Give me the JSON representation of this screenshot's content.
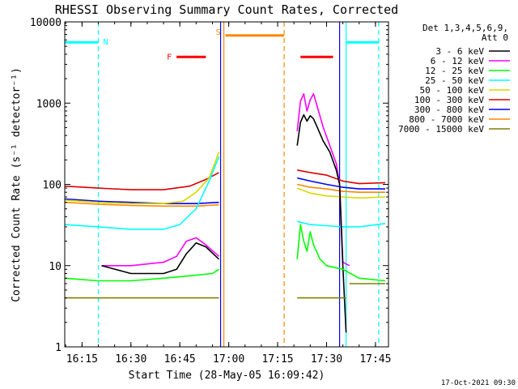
{
  "chart_data": {
    "type": "line",
    "title": "RHESSI Observing Summary Count Rates, Corrected",
    "xlabel": "Start Time (28-May-05 16:09:42)",
    "ylabel": "Corrected Count Rate (s⁻¹ detector⁻¹)",
    "yscale": "log",
    "ylim": [
      1,
      10000
    ],
    "xlim": [
      "16:09:42",
      "17:49:00"
    ],
    "x_ticks": [
      "16:15",
      "16:30",
      "16:45",
      "17:00",
      "17:15",
      "17:30",
      "17:45"
    ],
    "y_ticks": [
      "1",
      "10",
      "100",
      "1000",
      "10000"
    ],
    "timestamp": "17-Oct-2021 09:30",
    "legend": {
      "header": [
        "Det 1,3,4,5,6,9,",
        "Att 0"
      ],
      "position": "top-right",
      "entries": [
        {
          "label": "3 - 6 keV",
          "color": "#000000"
        },
        {
          "label": "6 - 12 keV",
          "color": "#ff00ff"
        },
        {
          "label": "12 - 25 keV",
          "color": "#00ff00"
        },
        {
          "label": "25 - 50 keV",
          "color": "#00ffff"
        },
        {
          "label": "50 - 100 keV",
          "color": "#d8d800"
        },
        {
          "label": "100 - 300 keV",
          "color": "#dd0000"
        },
        {
          "label": "300 - 800 keV",
          "color": "#0000ff"
        },
        {
          "label": "800 - 7000 keV",
          "color": "#ff8800"
        },
        {
          "label": "7000 - 15000 keV",
          "color": "#808000"
        }
      ]
    },
    "flags": [
      {
        "label": "N",
        "color": "#00ffff",
        "x_start": "16:09:42",
        "x_end": "16:20:00",
        "level": 5600
      },
      {
        "label": "N",
        "color": "#00ffff",
        "x_start": "17:36:00",
        "x_end": "17:46:00",
        "level": 5600
      },
      {
        "label": "F",
        "color": "#ff0000",
        "x_start": "16:44:00",
        "x_end": "16:53:00",
        "level": 3700
      },
      {
        "label": "F",
        "color": "#ff0000",
        "x_start": "17:22:00",
        "x_end": "17:32:00",
        "level": 3700
      },
      {
        "label": "S",
        "color": "#ff8800",
        "x_start": "16:59:00",
        "x_end": "17:17:00",
        "level": 6800
      }
    ],
    "markers": [
      {
        "time": "16:20:00",
        "color": "#00ffff",
        "style": "dashed"
      },
      {
        "time": "16:57:30",
        "color": "#0000ff",
        "style": "solid"
      },
      {
        "time": "16:58:30",
        "color": "#ff8800",
        "style": "solid"
      },
      {
        "time": "17:17:00",
        "color": "#ff8800",
        "style": "dashed"
      },
      {
        "time": "17:34:00",
        "color": "#0000ff",
        "style": "solid"
      },
      {
        "time": "17:36:00",
        "color": "#00ffff",
        "style": "solid"
      },
      {
        "time": "17:46:00",
        "color": "#00ffff",
        "style": "dashed"
      }
    ],
    "series": [
      {
        "color": "#dd0000",
        "segments": [
          [
            [
              "16:09:42",
              95
            ],
            [
              "16:20",
              90
            ],
            [
              "16:30",
              86
            ],
            [
              "16:40",
              86
            ],
            [
              "16:48",
              95
            ],
            [
              "16:53",
              115
            ],
            [
              "16:57",
              140
            ]
          ],
          [
            [
              "17:21",
              150
            ],
            [
              "17:25",
              140
            ],
            [
              "17:30",
              130
            ],
            [
              "17:35",
              110
            ],
            [
              "17:40",
              102
            ],
            [
              "17:48",
              105
            ]
          ]
        ]
      },
      {
        "color": "#0000ff",
        "segments": [
          [
            [
              "16:09:42",
              66
            ],
            [
              "16:20",
              62
            ],
            [
              "16:30",
              60
            ],
            [
              "16:40",
              58
            ],
            [
              "16:50",
              58
            ],
            [
              "16:57",
              60
            ]
          ],
          [
            [
              "17:21",
              120
            ],
            [
              "17:25",
              110
            ],
            [
              "17:30",
              100
            ],
            [
              "17:35",
              92
            ],
            [
              "17:40",
              88
            ],
            [
              "17:48",
              88
            ]
          ]
        ]
      },
      {
        "color": "#ff8800",
        "segments": [
          [
            [
              "16:09:42",
              60
            ],
            [
              "16:20",
              57
            ],
            [
              "16:30",
              55
            ],
            [
              "16:40",
              54
            ],
            [
              "16:50",
              54
            ],
            [
              "16:57",
              56
            ]
          ],
          [
            [
              "17:21",
              100
            ],
            [
              "17:25",
              92
            ],
            [
              "17:30",
              88
            ],
            [
              "17:35",
              82
            ],
            [
              "17:40",
              80
            ],
            [
              "17:48",
              80
            ]
          ]
        ]
      },
      {
        "color": "#d8d800",
        "segments": [
          [
            [
              "16:09:42",
              64
            ],
            [
              "16:20",
              60
            ],
            [
              "16:30",
              58
            ],
            [
              "16:40",
              58
            ],
            [
              "16:46",
              62
            ],
            [
              "16:50",
              80
            ],
            [
              "16:54",
              120
            ],
            [
              "16:57",
              250
            ]
          ],
          [
            [
              "17:21",
              90
            ],
            [
              "17:25",
              78
            ],
            [
              "17:30",
              72
            ],
            [
              "17:35",
              70
            ],
            [
              "17:40",
              68
            ],
            [
              "17:48",
              70
            ]
          ]
        ]
      },
      {
        "color": "#00ffff",
        "segments": [
          [
            [
              "16:09:42",
              32
            ],
            [
              "16:20",
              30
            ],
            [
              "16:30",
              28
            ],
            [
              "16:40",
              28
            ],
            [
              "16:45",
              32
            ],
            [
              "16:50",
              50
            ],
            [
              "16:54",
              110
            ],
            [
              "16:57",
              220
            ]
          ],
          [
            [
              "17:21",
              35
            ],
            [
              "17:25",
              32
            ],
            [
              "17:30",
              31
            ],
            [
              "17:35",
              30
            ],
            [
              "17:40",
              30
            ],
            [
              "17:48",
              33
            ]
          ]
        ]
      },
      {
        "color": "#ff00ff",
        "segments": [
          [
            [
              "16:21",
              10
            ],
            [
              "16:30",
              10
            ],
            [
              "16:40",
              11
            ],
            [
              "16:44",
              13
            ],
            [
              "16:47",
              20
            ],
            [
              "16:50",
              22
            ],
            [
              "16:53",
              18
            ],
            [
              "16:57",
              13
            ]
          ],
          [
            [
              "17:21",
              450
            ],
            [
              "17:22",
              1050
            ],
            [
              "17:23",
              1300
            ],
            [
              "17:24",
              800
            ],
            [
              "17:25",
              1100
            ],
            [
              "17:26",
              1300
            ],
            [
              "17:27",
              950
            ],
            [
              "17:29",
              500
            ],
            [
              "17:31",
              300
            ],
            [
              "17:33",
              180
            ],
            [
              "17:34",
              100
            ],
            [
              "17:35",
              11
            ],
            [
              "17:37",
              10
            ]
          ]
        ]
      },
      {
        "color": "#000000",
        "segments": [
          [
            [
              "16:21",
              10
            ],
            [
              "16:30",
              8
            ],
            [
              "16:40",
              8
            ],
            [
              "16:44",
              9
            ],
            [
              "16:47",
              14
            ],
            [
              "16:50",
              19
            ],
            [
              "16:53",
              17
            ],
            [
              "16:57",
              12
            ]
          ],
          [
            [
              "17:21",
              300
            ],
            [
              "17:22",
              580
            ],
            [
              "17:23",
              720
            ],
            [
              "17:24",
              600
            ],
            [
              "17:25",
              700
            ],
            [
              "17:26",
              640
            ],
            [
              "17:27",
              520
            ],
            [
              "17:29",
              340
            ],
            [
              "17:31",
              250
            ],
            [
              "17:33",
              150
            ],
            [
              "17:34",
              100
            ],
            [
              "17:35",
              10
            ],
            [
              "17:36",
              1.5
            ]
          ]
        ]
      },
      {
        "color": "#00ff00",
        "segments": [
          [
            [
              "16:09:42",
              7
            ],
            [
              "16:20",
              6.5
            ],
            [
              "16:30",
              6.5
            ],
            [
              "16:40",
              7
            ],
            [
              "16:48",
              7.5
            ],
            [
              "16:55",
              8
            ],
            [
              "16:57",
              9
            ]
          ],
          [
            [
              "17:21",
              12
            ],
            [
              "17:22",
              32
            ],
            [
              "17:23",
              20
            ],
            [
              "17:24",
              15
            ],
            [
              "17:25",
              26
            ],
            [
              "17:26",
              18
            ],
            [
              "17:28",
              12
            ],
            [
              "17:30",
              10
            ],
            [
              "17:35",
              9
            ],
            [
              "17:40",
              7
            ],
            [
              "17:48",
              6.5
            ]
          ]
        ]
      },
      {
        "color": "#808000",
        "segments": [
          [
            [
              "16:09:42",
              4
            ],
            [
              "16:20",
              4
            ],
            [
              "16:30",
              4
            ],
            [
              "16:40",
              4
            ],
            [
              "16:50",
              4
            ],
            [
              "16:57",
              4
            ]
          ],
          [
            [
              "17:21",
              4
            ],
            [
              "17:25",
              4
            ],
            [
              "17:30",
              4
            ],
            [
              "17:36",
              4
            ]
          ],
          [
            [
              "17:37",
              6
            ],
            [
              "17:40",
              6
            ],
            [
              "17:48",
              6
            ]
          ]
        ]
      }
    ]
  }
}
